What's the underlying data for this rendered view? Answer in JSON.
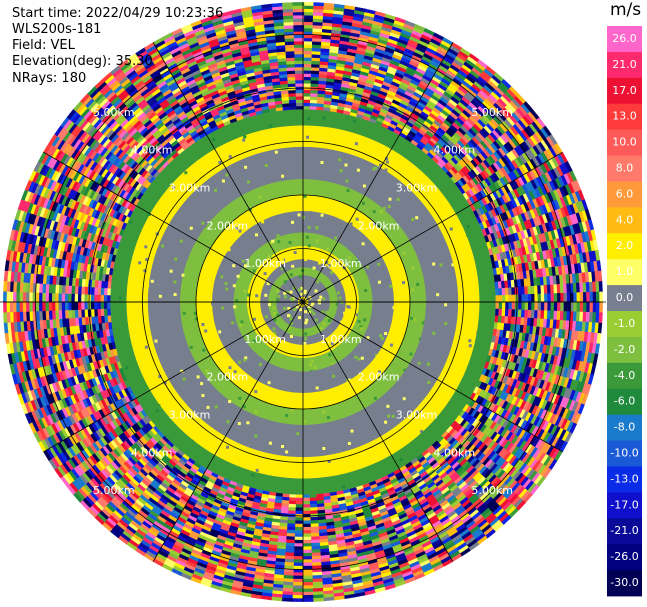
{
  "header": {
    "start_time": "Start time: 2022/04/29 10:23:36",
    "instrument": "WLS200s-181",
    "field": "Field: VEL",
    "elevation": "Elevation(deg): 35.30",
    "nrays": "NRays: 180"
  },
  "chart_data": {
    "type": "heatmap",
    "projection": "polar PPI",
    "field": "VEL",
    "units": "m/s",
    "range_ring_labels": [
      "1.00km",
      "2.00km",
      "3.00km",
      "4.00km",
      "5.00km"
    ],
    "range_rings_km": [
      1,
      2,
      3,
      4,
      5
    ],
    "max_range_km": 5.6,
    "spoke_angles_deg": [
      0,
      30,
      60,
      90,
      120,
      150,
      180,
      210,
      240,
      270,
      300,
      330
    ],
    "velocity_bands": [
      {
        "range_km": [
          0,
          0.1
        ],
        "velocity_ms": 2.0
      },
      {
        "range_km": [
          0.1,
          0.5
        ],
        "velocity_ms": 0.0
      },
      {
        "range_km": [
          0.5,
          0.65
        ],
        "velocity_ms": -2.0
      },
      {
        "range_km": [
          0.65,
          0.8
        ],
        "velocity_ms": 0.0
      },
      {
        "range_km": [
          0.8,
          1.05
        ],
        "velocity_ms": 2.0
      },
      {
        "range_km": [
          1.05,
          1.3
        ],
        "velocity_ms": -2.0
      },
      {
        "range_km": [
          1.3,
          1.7
        ],
        "velocity_ms": 0.0
      },
      {
        "range_km": [
          1.7,
          2.0
        ],
        "velocity_ms": 2.0
      },
      {
        "range_km": [
          2.0,
          2.3
        ],
        "velocity_ms": -2.0
      },
      {
        "range_km": [
          2.3,
          2.9
        ],
        "velocity_ms": 0.0
      },
      {
        "range_km": [
          2.9,
          3.3
        ],
        "velocity_ms": 2.0
      },
      {
        "range_km": [
          3.3,
          3.6
        ],
        "velocity_ms": -4.0
      },
      {
        "range_km": [
          3.6,
          5.6
        ],
        "velocity_ms": "noisy"
      }
    ],
    "colorbar": {
      "label": "m/s",
      "ticks": [
        "26.0",
        "21.0",
        "17.0",
        "13.0",
        "10.0",
        "8.0",
        "6.0",
        "4.0",
        "2.0",
        "1.0",
        "0.0",
        "-1.0",
        "-2.0",
        "-4.0",
        "-6.0",
        "-8.0",
        "-10.0",
        "-13.0",
        "-17.0",
        "-21.0",
        "-26.0",
        "-30.0"
      ],
      "colors": [
        "#ff66cc",
        "#ff2a6d",
        "#ee1133",
        "#ff3a3a",
        "#ff5a5a",
        "#ff7a6a",
        "#ff9a3a",
        "#ffbb11",
        "#ffee00",
        "#ffff66",
        "#777e8e",
        "#9acd32",
        "#7fbf3f",
        "#3a9a3a",
        "#1f8a3c",
        "#1a7acc",
        "#1a5ad6",
        "#0a2ce6",
        "#1010cc",
        "#0a0a99",
        "#000080",
        "#000055"
      ]
    }
  }
}
